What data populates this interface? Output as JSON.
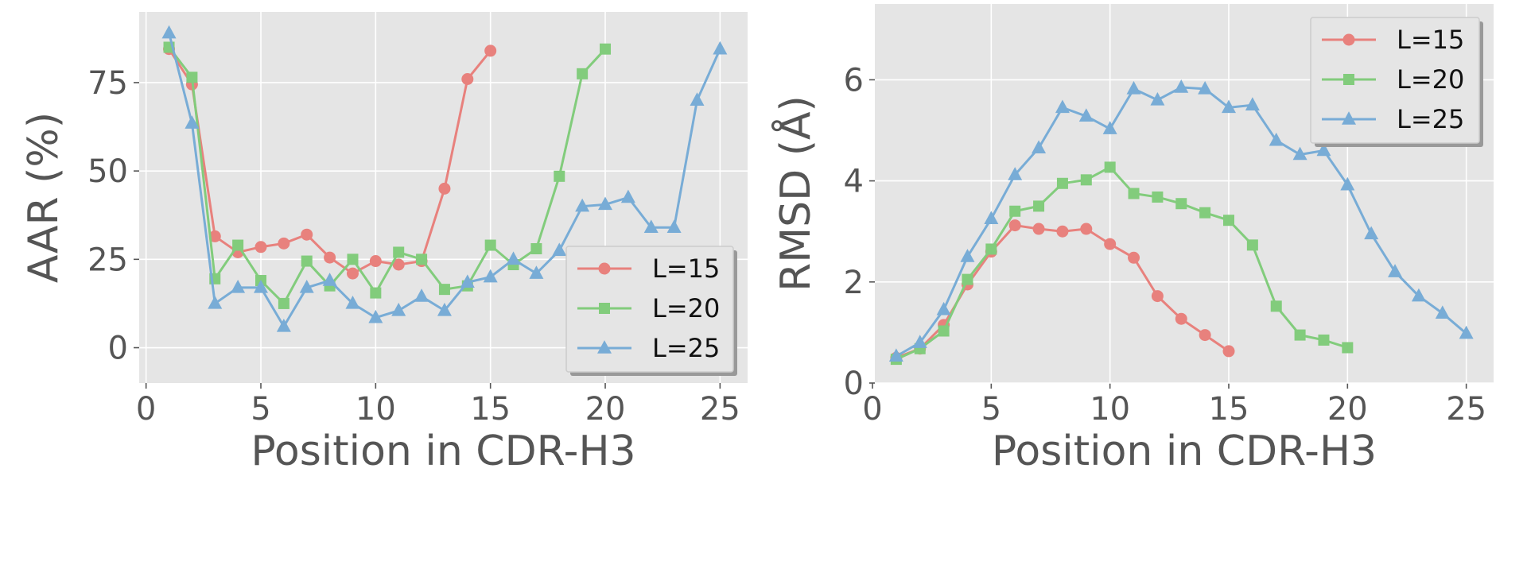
{
  "chart_data": [
    {
      "type": "line",
      "xlabel": "Position in CDR-H3",
      "ylabel": "AAR (%)",
      "xlim": [
        -0.3,
        26.2
      ],
      "ylim": [
        -10,
        95
      ],
      "xticks": [
        0,
        5,
        10,
        15,
        20,
        25
      ],
      "yticks": [
        0,
        25,
        50,
        75
      ],
      "grid": true,
      "legend_location": "lower-right",
      "series": [
        {
          "name": "L=15",
          "color": "#e8817d",
          "marker": "circle",
          "x": [
            1,
            2,
            3,
            4,
            5,
            6,
            7,
            8,
            9,
            10,
            11,
            12,
            13,
            14,
            15
          ],
          "y": [
            84.5,
            74.5,
            31.5,
            27,
            28.5,
            29.5,
            32,
            25.5,
            21,
            24.5,
            23.5,
            24.5,
            45,
            76,
            84
          ]
        },
        {
          "name": "L=20",
          "color": "#82cc7c",
          "marker": "square",
          "x": [
            1,
            2,
            3,
            4,
            5,
            6,
            7,
            8,
            9,
            10,
            11,
            12,
            13,
            14,
            15,
            16,
            17,
            18,
            19,
            20
          ],
          "y": [
            85,
            76.5,
            19.5,
            29,
            19,
            12.5,
            24.5,
            17.5,
            25,
            15.5,
            27,
            25,
            16.5,
            17.5,
            29,
            23.5,
            28,
            48.5,
            77.5,
            84.5
          ]
        },
        {
          "name": "L=25",
          "color": "#78acd6",
          "marker": "triangle",
          "x": [
            1,
            2,
            3,
            4,
            5,
            6,
            7,
            8,
            9,
            10,
            11,
            12,
            13,
            14,
            15,
            16,
            17,
            18,
            19,
            20,
            21,
            22,
            23,
            24,
            25
          ],
          "y": [
            89,
            63.5,
            12.5,
            17,
            17,
            6,
            17,
            19,
            12.5,
            8.5,
            10.5,
            14.5,
            10.5,
            18.5,
            20,
            25,
            21,
            27.5,
            40,
            40.5,
            42.5,
            34,
            34,
            70,
            84.5
          ]
        }
      ]
    },
    {
      "type": "line",
      "xlabel": "Position in CDR-H3",
      "ylabel": "RMSD (Å)",
      "xlim": [
        0.1,
        26.15
      ],
      "ylim": [
        0,
        7.5
      ],
      "xticks": [
        0,
        5,
        10,
        15,
        20,
        25
      ],
      "yticks": [
        0,
        2,
        4,
        6
      ],
      "grid": true,
      "legend_location": "upper-right",
      "series": [
        {
          "name": "L=15",
          "color": "#e8817d",
          "marker": "circle",
          "x": [
            1,
            2,
            3,
            4,
            5,
            6,
            7,
            8,
            9,
            10,
            11,
            12,
            13,
            14,
            15
          ],
          "y": [
            0.5,
            0.68,
            1.15,
            1.95,
            2.6,
            3.12,
            3.05,
            3.0,
            3.05,
            2.75,
            2.48,
            1.72,
            1.27,
            0.95,
            0.63
          ]
        },
        {
          "name": "L=20",
          "color": "#82cc7c",
          "marker": "square",
          "x": [
            1,
            2,
            3,
            4,
            5,
            6,
            7,
            8,
            9,
            10,
            11,
            12,
            13,
            14,
            15,
            16,
            17,
            18,
            19,
            20
          ],
          "y": [
            0.47,
            0.68,
            1.03,
            2.05,
            2.65,
            3.4,
            3.5,
            3.95,
            4.02,
            4.27,
            3.75,
            3.68,
            3.55,
            3.37,
            3.22,
            2.73,
            1.52,
            0.95,
            0.85,
            0.7
          ]
        },
        {
          "name": "L=25",
          "color": "#78acd6",
          "marker": "triangle",
          "x": [
            1,
            2,
            3,
            4,
            5,
            6,
            7,
            8,
            9,
            10,
            11,
            12,
            13,
            14,
            15,
            16,
            17,
            18,
            19,
            20,
            21,
            22,
            23,
            24,
            25
          ],
          "y": [
            0.53,
            0.8,
            1.45,
            2.5,
            3.25,
            4.12,
            4.65,
            5.45,
            5.28,
            5.03,
            5.82,
            5.6,
            5.85,
            5.82,
            5.45,
            5.5,
            4.8,
            4.52,
            4.6,
            3.92,
            2.95,
            2.2,
            1.72,
            1.38,
            0.98
          ]
        }
      ]
    }
  ]
}
